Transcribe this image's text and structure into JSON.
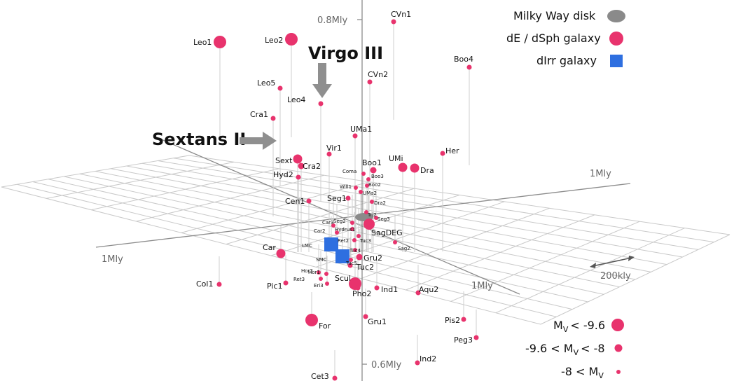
{
  "colors": {
    "dsph": "#e8336d",
    "dirr": "#2e6fe0",
    "disk": "#8a8a8a",
    "grid": "#c9c9c9",
    "axis": "#8c8c8c",
    "stem": "#cfcfcf",
    "callout_arrow": "#8f8f8f"
  },
  "axis_labels": {
    "top": "0.8Mly",
    "bottom": "0.6Mly",
    "right_upper": "1Mly",
    "left": "1Mly",
    "right_lower": "1Mly"
  },
  "scale_bar": {
    "label": "200kly"
  },
  "callouts": {
    "virgo": "Virgo III",
    "sextans": "Sextans II"
  },
  "legend_types": {
    "disk": "Milky Way disk",
    "dsph": "dE / dSph galaxy",
    "dirr": "dIrr galaxy"
  },
  "legend_mag": {
    "bright": {
      "pre": "M",
      "sub": "V",
      "post": "< -9.6"
    },
    "mid": {
      "pre": "-9.6 < M",
      "sub": "V",
      "post": "< -8"
    },
    "faint": {
      "pre": "-8 < M",
      "sub": "V",
      "post": ""
    }
  },
  "galaxies": [
    {
      "name": "CVn1",
      "type": "dsph",
      "size": "faint"
    },
    {
      "name": "Leo1",
      "type": "dsph",
      "size": "bright"
    },
    {
      "name": "Leo2",
      "type": "dsph",
      "size": "bright"
    },
    {
      "name": "Boo4",
      "type": "dsph",
      "size": "faint"
    },
    {
      "name": "CVn2",
      "type": "dsph",
      "size": "faint"
    },
    {
      "name": "Leo5",
      "type": "dsph",
      "size": "faint"
    },
    {
      "name": "Leo4",
      "type": "dsph",
      "size": "faint"
    },
    {
      "name": "Cra1",
      "type": "dsph",
      "size": "faint"
    },
    {
      "name": "UMa1",
      "type": "dsph",
      "size": "faint"
    },
    {
      "name": "Her",
      "type": "dsph",
      "size": "faint"
    },
    {
      "name": "Vir1",
      "type": "dsph",
      "size": "faint"
    },
    {
      "name": "Sext",
      "type": "dsph",
      "size": "bright"
    },
    {
      "name": "Cra2",
      "type": "dsph",
      "size": "mid"
    },
    {
      "name": "UMi",
      "type": "dsph",
      "size": "bright"
    },
    {
      "name": "Dra",
      "type": "dsph",
      "size": "bright"
    },
    {
      "name": "Boo1",
      "type": "dsph",
      "size": "mid"
    },
    {
      "name": "Hyd2",
      "type": "dsph",
      "size": "faint"
    },
    {
      "name": "Coma",
      "type": "dsph",
      "size": "faint"
    },
    {
      "name": "Boo3",
      "type": "dsph",
      "size": "faint"
    },
    {
      "name": "Boo2",
      "type": "dsph",
      "size": "faint"
    },
    {
      "name": "Will1",
      "type": "dsph",
      "size": "faint"
    },
    {
      "name": "UMa2",
      "type": "dsph",
      "size": "faint"
    },
    {
      "name": "Cen1",
      "type": "dsph",
      "size": "faint"
    },
    {
      "name": "Seg1",
      "type": "dsph",
      "size": "faint"
    },
    {
      "name": "Dra2",
      "type": "dsph",
      "size": "faint"
    },
    {
      "name": "Tri2",
      "type": "dsph",
      "size": "faint"
    },
    {
      "name": "Car3",
      "type": "dsph",
      "size": "faint"
    },
    {
      "name": "Seg2",
      "type": "dsph",
      "size": "faint"
    },
    {
      "name": "Seg3",
      "type": "dsph",
      "size": "faint"
    },
    {
      "name": "Car2",
      "type": "dsph",
      "size": "faint"
    },
    {
      "name": "Hydrus1",
      "type": "dsph",
      "size": "faint"
    },
    {
      "name": "SagDEG",
      "type": "dsph",
      "size": "bright"
    },
    {
      "name": "Ret2",
      "type": "dsph",
      "size": "faint"
    },
    {
      "name": "Tuc3",
      "type": "dsph",
      "size": "faint"
    },
    {
      "name": "Car",
      "type": "dsph",
      "size": "bright"
    },
    {
      "name": "LMC",
      "type": "dirr",
      "size": "big"
    },
    {
      "name": "Tuc4",
      "type": "dsph",
      "size": "faint"
    },
    {
      "name": "Sag2.",
      "type": "dsph",
      "size": "faint"
    },
    {
      "name": "SMC",
      "type": "dirr",
      "size": "big"
    },
    {
      "name": "Tuc5",
      "type": "dsph",
      "size": "faint"
    },
    {
      "name": "Gru2",
      "type": "dsph",
      "size": "faint"
    },
    {
      "name": "Tuc2",
      "type": "dsph",
      "size": "faint"
    },
    {
      "name": "Hor2",
      "type": "dsph",
      "size": "faint"
    },
    {
      "name": "Hor1",
      "type": "dsph",
      "size": "faint"
    },
    {
      "name": "Ret3",
      "type": "dsph",
      "size": "faint"
    },
    {
      "name": "Scul",
      "type": "dsph",
      "size": "bright"
    },
    {
      "name": "Col1",
      "type": "dsph",
      "size": "faint"
    },
    {
      "name": "Pic1",
      "type": "dsph",
      "size": "faint"
    },
    {
      "name": "Eri3",
      "type": "dsph",
      "size": "faint"
    },
    {
      "name": "Ind1",
      "type": "dsph",
      "size": "faint"
    },
    {
      "name": "Aqu2",
      "type": "dsph",
      "size": "faint"
    },
    {
      "name": "Pho2",
      "type": "dsph",
      "size": "faint"
    },
    {
      "name": "Gru1",
      "type": "dsph",
      "size": "faint"
    },
    {
      "name": "For",
      "type": "dsph",
      "size": "bright"
    },
    {
      "name": "Pis2",
      "type": "dsph",
      "size": "faint"
    },
    {
      "name": "Peg3",
      "type": "dsph",
      "size": "faint"
    },
    {
      "name": "Ind2",
      "type": "dsph",
      "size": "faint"
    },
    {
      "name": "Cet3",
      "type": "dsph",
      "size": "faint"
    }
  ]
}
